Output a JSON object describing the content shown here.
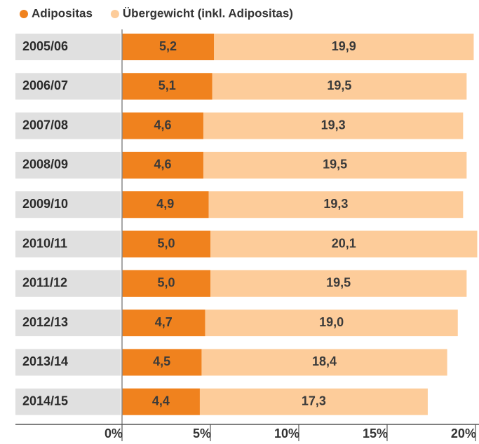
{
  "chart_data": {
    "type": "bar",
    "orientation": "horizontal",
    "overlap": true,
    "categories": [
      "2005/06",
      "2006/07",
      "2007/08",
      "2008/09",
      "2009/10",
      "2010/11",
      "2011/12",
      "2012/13",
      "2013/14",
      "2014/15"
    ],
    "series": [
      {
        "name": "Übergewicht (inkl. Adipositas)",
        "color": "#fdcc9a",
        "values": [
          19.9,
          19.5,
          19.3,
          19.5,
          19.3,
          20.1,
          19.5,
          19.0,
          18.4,
          17.3
        ],
        "value_labels": [
          "19,9",
          "19,5",
          "19,3",
          "19,5",
          "19,3",
          "20,1",
          "19,5",
          "19,0",
          "18,4",
          "17,3"
        ]
      },
      {
        "name": "Adipositas",
        "color": "#f0821e",
        "values": [
          5.2,
          5.1,
          4.6,
          4.6,
          4.9,
          5.0,
          5.0,
          4.7,
          4.5,
          4.4
        ],
        "value_labels": [
          "5,2",
          "5,1",
          "4,6",
          "4,6",
          "4,9",
          "5,0",
          "5,0",
          "4,7",
          "4,5",
          "4,4"
        ]
      }
    ],
    "xlim": [
      0,
      20.2
    ],
    "xticks": [
      {
        "value": 0,
        "label": "0%"
      },
      {
        "value": 5,
        "label": "5%"
      },
      {
        "value": 10,
        "label": "10%"
      },
      {
        "value": 15,
        "label": "15%"
      },
      {
        "value": 20,
        "label": "20%"
      }
    ],
    "category_color": "#e0e0e0"
  }
}
